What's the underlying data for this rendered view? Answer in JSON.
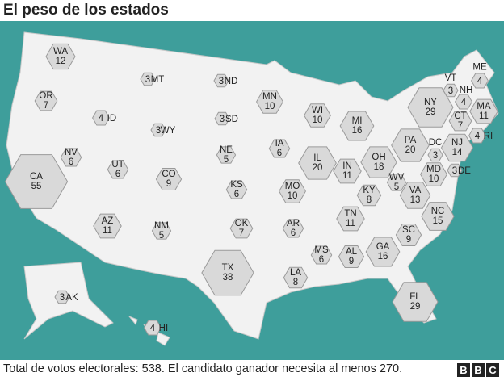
{
  "title": "El peso de los estados",
  "states": [
    {
      "code": "WA",
      "votes": 12
    },
    {
      "code": "OR",
      "votes": 7
    },
    {
      "code": "CA",
      "votes": 55
    },
    {
      "code": "NV",
      "votes": 6
    },
    {
      "code": "ID",
      "votes": 4
    },
    {
      "code": "MT",
      "votes": 3
    },
    {
      "code": "WY",
      "votes": 3
    },
    {
      "code": "UT",
      "votes": 6
    },
    {
      "code": "AZ",
      "votes": 11
    },
    {
      "code": "CO",
      "votes": 9
    },
    {
      "code": "NM",
      "votes": 5
    },
    {
      "code": "ND",
      "votes": 3
    },
    {
      "code": "SD",
      "votes": 3
    },
    {
      "code": "NE",
      "votes": 5
    },
    {
      "code": "KS",
      "votes": 6
    },
    {
      "code": "OK",
      "votes": 7
    },
    {
      "code": "TX",
      "votes": 38
    },
    {
      "code": "MN",
      "votes": 10
    },
    {
      "code": "IA",
      "votes": 6
    },
    {
      "code": "MO",
      "votes": 10
    },
    {
      "code": "AR",
      "votes": 6
    },
    {
      "code": "LA",
      "votes": 8
    },
    {
      "code": "WI",
      "votes": 10
    },
    {
      "code": "IL",
      "votes": 20
    },
    {
      "code": "MS",
      "votes": 6
    },
    {
      "code": "AL",
      "votes": 9
    },
    {
      "code": "TN",
      "votes": 11
    },
    {
      "code": "KY",
      "votes": 8
    },
    {
      "code": "IN",
      "votes": 11
    },
    {
      "code": "MI",
      "votes": 16
    },
    {
      "code": "OH",
      "votes": 18
    },
    {
      "code": "GA",
      "votes": 16
    },
    {
      "code": "FL",
      "votes": 29
    },
    {
      "code": "SC",
      "votes": 9
    },
    {
      "code": "NC",
      "votes": 15
    },
    {
      "code": "VA",
      "votes": 13
    },
    {
      "code": "WV",
      "votes": 5
    },
    {
      "code": "PA",
      "votes": 20
    },
    {
      "code": "MD",
      "votes": 10
    },
    {
      "code": "DE",
      "votes": 3
    },
    {
      "code": "DC",
      "votes": 3
    },
    {
      "code": "NJ",
      "votes": 14
    },
    {
      "code": "NY",
      "votes": 29
    },
    {
      "code": "VT",
      "votes": 3
    },
    {
      "code": "NH",
      "votes": 4
    },
    {
      "code": "ME",
      "votes": 4
    },
    {
      "code": "MA",
      "votes": 11
    },
    {
      "code": "CT",
      "votes": 7
    },
    {
      "code": "RI",
      "votes": 4
    },
    {
      "code": "AK",
      "votes": 3
    },
    {
      "code": "HI",
      "votes": 4
    }
  ],
  "footer": "Total de votos electorales: 538. El candidato ganador necesita al menos 270.",
  "logo": [
    "B",
    "B",
    "C"
  ]
}
